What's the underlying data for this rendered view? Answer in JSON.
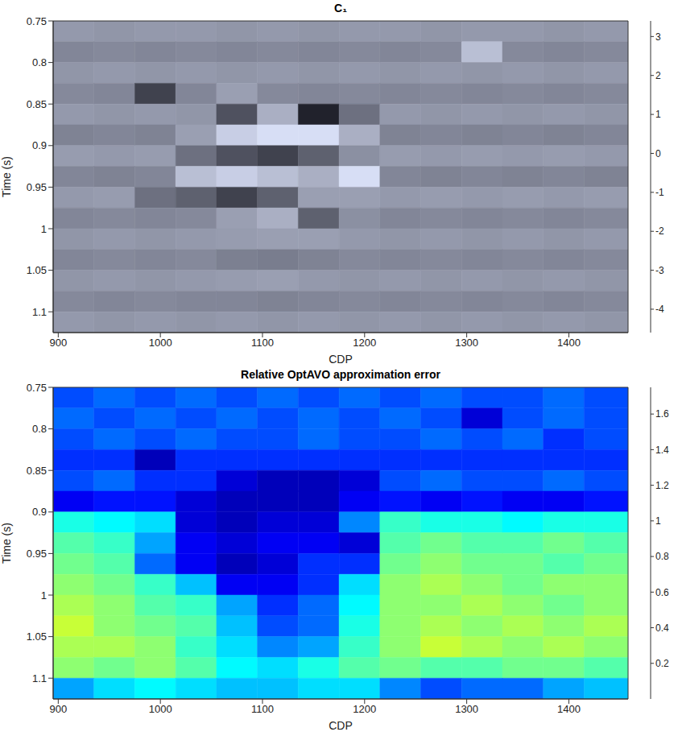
{
  "chart_data": [
    {
      "type": "heatmap",
      "title": "C₁",
      "x_label": "CDP",
      "y_label": "Time (s)",
      "color": "bone",
      "xlim": [
        895,
        1458
      ],
      "ylim": [
        0.75,
        1.125
      ],
      "xticks": [
        900,
        1000,
        1100,
        1200,
        1300,
        1400
      ],
      "yticks": [
        0.75,
        0.8,
        0.85,
        0.9,
        0.95,
        1,
        1.05,
        1.1
      ],
      "x": [
        915,
        955,
        995,
        1035,
        1075,
        1115,
        1155,
        1195,
        1235,
        1275,
        1315,
        1355,
        1395,
        1435
      ],
      "y": [
        0.7625,
        0.7875,
        0.8125,
        0.8375,
        0.8625,
        0.8875,
        0.9125,
        0.9375,
        0.9625,
        0.9875,
        1.0125,
        1.0375,
        1.0625,
        1.0875,
        1.1125
      ],
      "cells": [
        [
          0.3,
          0.2,
          0.3,
          0.3,
          0.2,
          0.3,
          0.2,
          0.3,
          0.3,
          0.2,
          0.3,
          0.3,
          0.2,
          0.3
        ],
        [
          -0.3,
          -0.2,
          -0.3,
          -0.2,
          -0.3,
          -0.2,
          -0.3,
          -0.2,
          -0.3,
          -0.2,
          1.5,
          -0.2,
          -0.3,
          -0.2
        ],
        [
          0.2,
          0.3,
          0.2,
          0.3,
          0.2,
          0.3,
          0.2,
          0.3,
          0.2,
          0.3,
          0.2,
          0.3,
          0.2,
          0.3
        ],
        [
          -0.2,
          -0.3,
          -2.5,
          -0.3,
          0.5,
          -0.2,
          -0.3,
          -0.2,
          -0.3,
          -0.2,
          -0.3,
          -0.2,
          -0.3,
          -0.2
        ],
        [
          0.3,
          0.2,
          0.3,
          0.2,
          -2,
          1,
          -3.5,
          -1,
          0.3,
          0.2,
          0.3,
          0.2,
          0.3,
          0.2
        ],
        [
          -0.4,
          -0.3,
          -0.4,
          0.5,
          2,
          2.5,
          2.5,
          1,
          -0.4,
          -0.3,
          -0.4,
          -0.3,
          -0.4,
          -0.3
        ],
        [
          0.4,
          0.3,
          0.4,
          -1,
          -2,
          -2.5,
          -1.5,
          0,
          0.4,
          0.3,
          0.4,
          0.3,
          0.4,
          0.3
        ],
        [
          -0.3,
          -0.4,
          -0.3,
          1.5,
          2,
          1.5,
          1,
          2.5,
          -0.3,
          -0.4,
          -0.3,
          -0.4,
          -0.3,
          -0.4
        ],
        [
          0.3,
          0.4,
          -1,
          -1.5,
          -2.5,
          -1.5,
          0.5,
          0.5,
          0.3,
          0.4,
          0.3,
          0.4,
          0.3,
          0.4
        ],
        [
          -0.3,
          -0.2,
          -0.3,
          -0.2,
          0.5,
          1,
          -1.5,
          0,
          -0.3,
          -0.2,
          -0.3,
          -0.2,
          -0.3,
          -0.2
        ],
        [
          0.2,
          0.3,
          0.2,
          0.3,
          0.4,
          0.5,
          0.5,
          0.3,
          0.2,
          0.3,
          0.2,
          0.3,
          0.2,
          0.3
        ],
        [
          -0.3,
          -0.2,
          -0.3,
          -0.2,
          -0.5,
          -0.6,
          -0.4,
          -0.2,
          -0.3,
          -0.2,
          -0.3,
          -0.2,
          -0.3,
          -0.2
        ],
        [
          0.2,
          0.3,
          0.2,
          0.3,
          0.4,
          0.5,
          0.3,
          0.2,
          0.3,
          0.2,
          0.3,
          0.2,
          0.3,
          0.2
        ],
        [
          -0.2,
          -0.3,
          -0.2,
          -0.3,
          -0.3,
          -0.4,
          -0.3,
          -0.2,
          -0.3,
          -0.2,
          -0.3,
          -0.2,
          -0.3,
          -0.2
        ],
        [
          0.3,
          0.2,
          0.3,
          0.2,
          0.3,
          0.2,
          0.3,
          0.2,
          0.3,
          0.2,
          0.3,
          0.2,
          0.3,
          0.2
        ]
      ],
      "colorbar": {
        "range": [
          -4.6,
          3.4
        ],
        "ticks": [
          -4,
          -3,
          -2,
          -1,
          0,
          1,
          2,
          3
        ]
      }
    },
    {
      "type": "heatmap",
      "title": "Relative OptAVO approximation error",
      "x_label": "CDP",
      "y_label": "Time (s)",
      "color": "jet",
      "xlim": [
        895,
        1458
      ],
      "ylim": [
        0.75,
        1.125
      ],
      "xticks": [
        900,
        1000,
        1100,
        1200,
        1300,
        1400
      ],
      "yticks": [
        0.75,
        0.8,
        0.85,
        0.9,
        0.95,
        1,
        1.05,
        1.1
      ],
      "x": [
        915,
        955,
        995,
        1035,
        1075,
        1115,
        1155,
        1195,
        1235,
        1275,
        1315,
        1355,
        1395,
        1435
      ],
      "y": [
        0.7625,
        0.7875,
        0.8125,
        0.8375,
        0.8625,
        0.8875,
        0.9125,
        0.9375,
        0.9625,
        0.9875,
        1.0125,
        1.0375,
        1.0625,
        1.0875,
        1.1125
      ],
      "cells": [
        [
          0.35,
          0.4,
          0.35,
          0.4,
          0.35,
          0.4,
          0.35,
          0.4,
          0.35,
          0.4,
          0.35,
          0.35,
          0.4,
          0.35
        ],
        [
          0.4,
          0.35,
          0.4,
          0.35,
          0.4,
          0.35,
          0.4,
          0.35,
          0.4,
          0.35,
          0.15,
          0.35,
          0.4,
          0.35
        ],
        [
          0.35,
          0.4,
          0.35,
          0.4,
          0.35,
          0.35,
          0.4,
          0.35,
          0.35,
          0.4,
          0.35,
          0.4,
          0.3,
          0.35
        ],
        [
          0.3,
          0.3,
          0.1,
          0.3,
          0.3,
          0.3,
          0.3,
          0.3,
          0.3,
          0.3,
          0.3,
          0.3,
          0.3,
          0.3
        ],
        [
          0.35,
          0.4,
          0.3,
          0.3,
          0.15,
          0.1,
          0.1,
          0.15,
          0.35,
          0.4,
          0.35,
          0.35,
          0.4,
          0.35
        ],
        [
          0.2,
          0.25,
          0.25,
          0.15,
          0.1,
          0.1,
          0.1,
          0.2,
          0.25,
          0.2,
          0.25,
          0.2,
          0.2,
          0.25
        ],
        [
          0.7,
          0.65,
          0.6,
          0.15,
          0.1,
          0.15,
          0.15,
          0.45,
          0.75,
          0.7,
          0.7,
          0.65,
          0.7,
          0.7
        ],
        [
          0.8,
          0.75,
          0.5,
          0.2,
          0.15,
          0.2,
          0.2,
          0.15,
          0.8,
          0.85,
          0.8,
          0.8,
          0.85,
          0.8
        ],
        [
          0.85,
          0.8,
          0.4,
          0.2,
          0.1,
          0.15,
          0.3,
          0.3,
          0.85,
          0.9,
          0.85,
          0.85,
          0.8,
          0.85
        ],
        [
          0.9,
          0.85,
          0.75,
          0.55,
          0.2,
          0.2,
          0.3,
          0.6,
          0.9,
          0.95,
          0.9,
          0.85,
          0.9,
          0.9
        ],
        [
          0.95,
          0.9,
          0.8,
          0.75,
          0.5,
          0.3,
          0.4,
          0.65,
          0.9,
          0.9,
          0.95,
          0.9,
          0.85,
          0.9
        ],
        [
          1.0,
          0.9,
          0.85,
          0.8,
          0.55,
          0.35,
          0.4,
          0.7,
          0.9,
          0.95,
          0.9,
          0.95,
          0.9,
          0.95
        ],
        [
          0.95,
          0.95,
          0.9,
          0.75,
          0.6,
          0.45,
          0.5,
          0.75,
          0.9,
          1.0,
          0.95,
          0.9,
          0.95,
          0.9
        ],
        [
          0.9,
          0.85,
          0.9,
          0.8,
          0.65,
          0.6,
          0.7,
          0.8,
          0.85,
          0.8,
          0.8,
          0.85,
          0.85,
          0.8
        ],
        [
          0.5,
          0.6,
          0.65,
          0.6,
          0.55,
          0.55,
          0.6,
          0.6,
          0.45,
          0.35,
          0.4,
          0.4,
          0.5,
          0.55
        ]
      ],
      "colorbar": {
        "range": [
          0,
          1.75
        ],
        "ticks": [
          0.2,
          0.4,
          0.6,
          0.8,
          1,
          1.2,
          1.4,
          1.6
        ]
      }
    }
  ]
}
